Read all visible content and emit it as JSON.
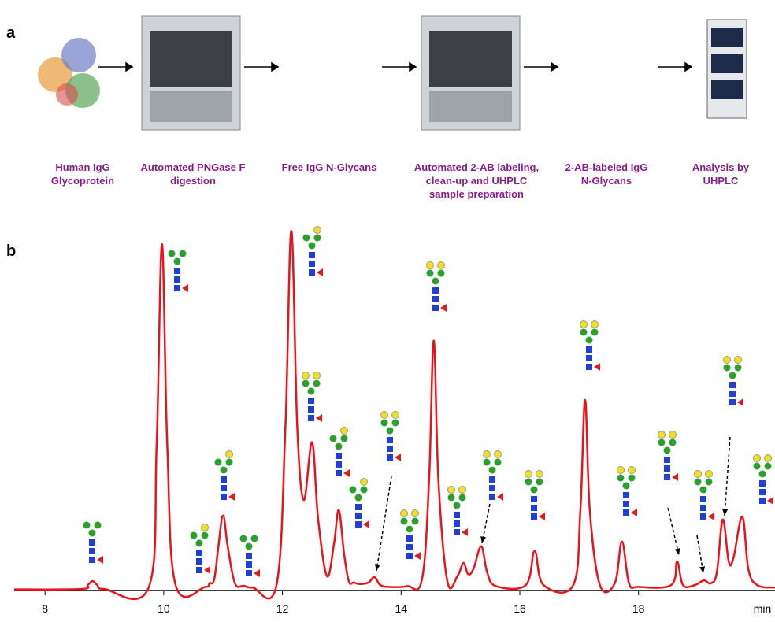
{
  "panels": {
    "a": {
      "label": "a",
      "steps": [
        {
          "lines": [
            "Human IgG",
            "Glycoprotein"
          ]
        },
        {
          "lines": [
            "Automated PNGase F",
            "digestion"
          ]
        },
        {
          "lines": [
            "Free IgG N-Glycans"
          ]
        },
        {
          "lines": [
            "Automated 2-AB labeling,",
            "clean-up and UHPLC",
            "sample preparation"
          ]
        },
        {
          "lines": [
            "2-AB-labeled IgG",
            "N-Glycans"
          ]
        },
        {
          "lines": [
            "Analysis by",
            "UHPLC"
          ]
        }
      ]
    },
    "b": {
      "label": "b"
    }
  },
  "chart_data": {
    "type": "line",
    "x_label": "min",
    "xlim": [
      7.48,
      20.3
    ],
    "ylim": [
      0,
      100
    ],
    "xticks": [
      8,
      10,
      12,
      14,
      16,
      18
    ],
    "x": [
      7.48,
      8.6,
      8.72,
      8.8,
      8.88,
      9.0,
      9.75,
      9.88,
      9.97,
      10.06,
      10.2,
      10.7,
      10.77,
      10.85,
      10.92,
      11.0,
      11.08,
      11.2,
      11.35,
      11.5,
      11.9,
      12.05,
      12.15,
      12.25,
      12.36,
      12.5,
      12.6,
      12.75,
      12.87,
      12.95,
      13.04,
      13.12,
      13.2,
      13.3,
      13.45,
      13.55,
      13.65,
      13.8,
      14.1,
      14.35,
      14.47,
      14.55,
      14.63,
      14.78,
      14.95,
      15.05,
      15.13,
      15.22,
      15.35,
      15.45,
      15.6,
      16.1,
      16.25,
      16.4,
      16.9,
      17.02,
      17.1,
      17.18,
      17.35,
      17.6,
      17.72,
      17.84,
      18.0,
      18.55,
      18.65,
      18.75,
      18.95,
      19.1,
      19.22,
      19.32,
      19.42,
      19.52,
      19.6,
      19.75,
      19.85,
      20.0,
      20.3
    ],
    "series": [
      {
        "color": "#e8141b",
        "values": [
          0.3,
          0.4,
          1.5,
          2.6,
          1.5,
          0.4,
          1,
          40,
          95.7,
          40,
          1.5,
          1,
          2,
          3,
          12,
          20.7,
          12,
          2,
          1.3,
          0.8,
          1.5,
          45,
          99.3,
          45,
          25,
          40.9,
          20,
          4,
          13,
          22.2,
          10,
          2.5,
          2.2,
          1.8,
          2.2,
          3.7,
          1.5,
          1,
          1.2,
          3,
          30,
          69,
          30,
          2.5,
          4,
          7.6,
          4.5,
          6,
          12.2,
          5,
          1.2,
          1.5,
          10.9,
          1.5,
          1.5,
          22,
          52.6,
          22,
          1.5,
          2,
          13.5,
          2,
          1,
          1.5,
          8,
          1.5,
          1.5,
          2.8,
          2,
          5,
          19.6,
          8,
          9,
          20.4,
          6,
          1.5,
          0.8
        ]
      }
    ]
  }
}
